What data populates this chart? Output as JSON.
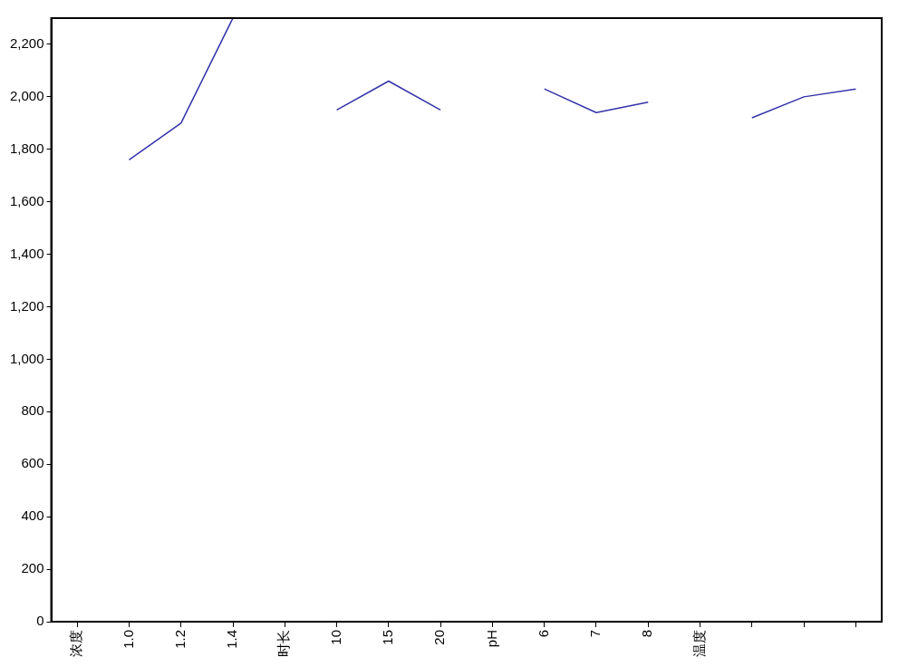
{
  "chart_data": {
    "type": "line",
    "categories": [
      "浓度",
      "1.0",
      "1.2",
      "1.4",
      "时长",
      "10",
      "15",
      "20",
      "pH",
      "6",
      "7",
      "8",
      "温度",
      null,
      null,
      null
    ],
    "series": [
      {
        "color": "#3333aa",
        "values": [
          null,
          1760,
          1900,
          2300,
          null,
          1950,
          2060,
          1950,
          null,
          2030,
          1940,
          1980,
          null,
          1920,
          2000,
          2030
        ]
      }
    ],
    "ylim": [
      0,
      2300
    ],
    "yticks": [
      0,
      200,
      400,
      600,
      800,
      {
        "value": 1000,
        "label": "1,000"
      },
      {
        "value": 1200,
        "label": "1,200"
      },
      {
        "value": 1400,
        "label": "1,400"
      },
      {
        "value": 1600,
        "label": "1,600"
      },
      {
        "value": 1800,
        "label": "1,800"
      },
      {
        "value": 2000,
        "label": "2,000"
      },
      {
        "value": 2200,
        "label": "2,200"
      }
    ],
    "grid": false,
    "legend": false,
    "marker": "none",
    "line_style": "solid"
  }
}
